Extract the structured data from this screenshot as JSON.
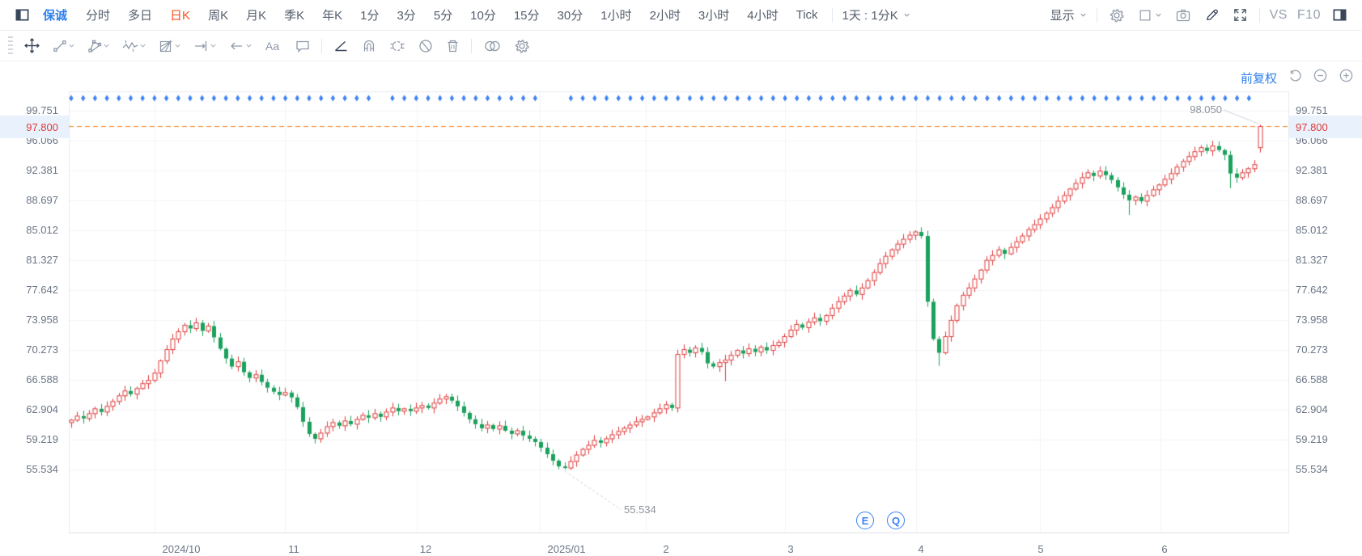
{
  "header": {
    "symbol": "保诚",
    "timeframes": [
      "分时",
      "多日",
      "日K",
      "周K",
      "月K",
      "季K",
      "年K",
      "1分",
      "3分",
      "5分",
      "10分",
      "15分",
      "30分",
      "1小时",
      "2小时",
      "3小时",
      "4小时",
      "Tick"
    ],
    "active_timeframe": "日K",
    "custom_period": "1天 : 1分K",
    "display_label": "显示",
    "vs_label": "VS",
    "f10_label": "F10",
    "right_icons": [
      "settings-gear-icon",
      "chart-style-icon",
      "camera-icon",
      "pencil-icon",
      "fullscreen-icon",
      "panel-right-icon"
    ]
  },
  "drawing_toolbar": {
    "tools": [
      "drag-handle",
      "cursor-move-tool",
      "trend-line-tool",
      "pitchfork-tool",
      "elliott-wave-tool",
      "gann-box-tool",
      "measure-tool",
      "arrow-tool",
      "text-tool",
      "note-tool",
      "angle-tool",
      "magnet-tool",
      "sync-drawings-tool",
      "hide-drawings-tool",
      "delete-drawings-tool",
      "compare-tool",
      "drawing-settings"
    ]
  },
  "chart": {
    "adjust_label": "前复权",
    "zoom_controls": [
      "undo-icon",
      "zoom-out-icon",
      "zoom-in-icon"
    ],
    "current_price": "97.800",
    "high_annotation": "98.050",
    "low_annotation": "55.534",
    "event_markers": [
      "E",
      "Q"
    ]
  },
  "chart_data": {
    "type": "candlestick",
    "symbol": "保诚",
    "timeframe": "日K",
    "adjustment": "前复权",
    "title": "",
    "y_ticks": [
      99.751,
      96.066,
      92.381,
      88.697,
      85.012,
      81.327,
      77.642,
      73.958,
      70.273,
      66.588,
      62.904,
      59.219,
      55.534
    ],
    "y_tick_labels": [
      "99.751",
      "96.066",
      "92.381",
      "88.697",
      "85.012",
      "81.327",
      "77.642",
      "73.958",
      "70.273",
      "66.588",
      "62.904",
      "59.219",
      "55.534"
    ],
    "x_tick_labels": [
      "2024/10",
      "11",
      "12",
      "2025/01",
      "2",
      "3",
      "4",
      "5",
      "6"
    ],
    "current_price": 97.8,
    "period_high": 98.05,
    "period_low": 55.534,
    "closes": [
      61.6,
      62.1,
      61.8,
      62.4,
      63.0,
      62.6,
      63.3,
      63.9,
      64.6,
      65.2,
      64.8,
      65.5,
      66.1,
      66.5,
      67.4,
      68.9,
      70.3,
      71.6,
      72.5,
      73.3,
      72.9,
      73.6,
      72.6,
      73.2,
      71.8,
      70.4,
      69.2,
      68.2,
      68.8,
      67.5,
      66.8,
      67.2,
      66.3,
      65.6,
      65.1,
      64.7,
      65.0,
      64.4,
      63.2,
      61.4,
      59.9,
      59.3,
      60.0,
      60.8,
      61.3,
      60.9,
      61.5,
      61.1,
      61.7,
      62.2,
      61.9,
      62.4,
      62.0,
      62.6,
      63.1,
      62.7,
      63.0,
      62.7,
      63.1,
      63.4,
      63.1,
      63.7,
      64.2,
      64.5,
      64.0,
      63.3,
      62.5,
      61.7,
      61.1,
      60.6,
      61.0,
      60.5,
      60.9,
      60.3,
      59.9,
      60.3,
      59.7,
      59.3,
      58.9,
      58.2,
      57.4,
      56.6,
      55.9,
      55.7,
      56.5,
      57.3,
      58.0,
      58.5,
      59.1,
      58.8,
      59.3,
      59.8,
      60.2,
      60.6,
      61.0,
      61.4,
      61.7,
      62.0,
      62.5,
      63.0,
      63.5,
      63.1,
      69.7,
      70.3,
      69.9,
      70.5,
      70.0,
      68.6,
      68.2,
      68.7,
      69.0,
      69.6,
      70.2,
      69.8,
      70.4,
      70.0,
      70.6,
      70.2,
      70.8,
      71.2,
      71.9,
      72.7,
      73.4,
      73.0,
      73.7,
      74.2,
      73.8,
      74.5,
      75.4,
      76.2,
      76.9,
      77.6,
      77.1,
      77.9,
      78.8,
      79.8,
      80.9,
      81.8,
      82.6,
      83.3,
      83.9,
      84.4,
      84.8,
      84.3,
      76.2,
      71.6,
      69.9,
      71.9,
      73.9,
      75.7,
      77.0,
      77.9,
      79.0,
      80.1,
      81.3,
      81.9,
      82.6,
      82.1,
      82.9,
      83.6,
      84.3,
      85.1,
      85.7,
      86.4,
      87.1,
      87.8,
      88.6,
      89.3,
      90.1,
      90.8,
      91.5,
      92.1,
      91.7,
      92.3,
      91.8,
      91.2,
      90.3,
      89.4,
      88.7,
      89.1,
      88.6,
      89.3,
      90.0,
      90.6,
      91.3,
      92.0,
      92.8,
      93.5,
      94.1,
      94.7,
      95.2,
      94.8,
      95.4,
      94.9,
      94.3,
      92.0,
      91.5,
      92.1,
      92.6,
      93.1,
      97.8
    ],
    "last_candle": {
      "open": 95.2,
      "high": 98.05,
      "low": 94.6,
      "close": 97.8
    },
    "min_candle_index": 83,
    "special_lows": {
      "83": 55.534,
      "110": 66.4,
      "146": 68.3,
      "178": 86.9,
      "195": 90.2
    },
    "event_marker_row": "blue-diamonds",
    "up_color": "#e03b3b",
    "down_color": "#1aa15b",
    "current_price_line_color": "#f08122",
    "marker_color": "#3b82f4",
    "grid": true,
    "legend_position": "none"
  }
}
